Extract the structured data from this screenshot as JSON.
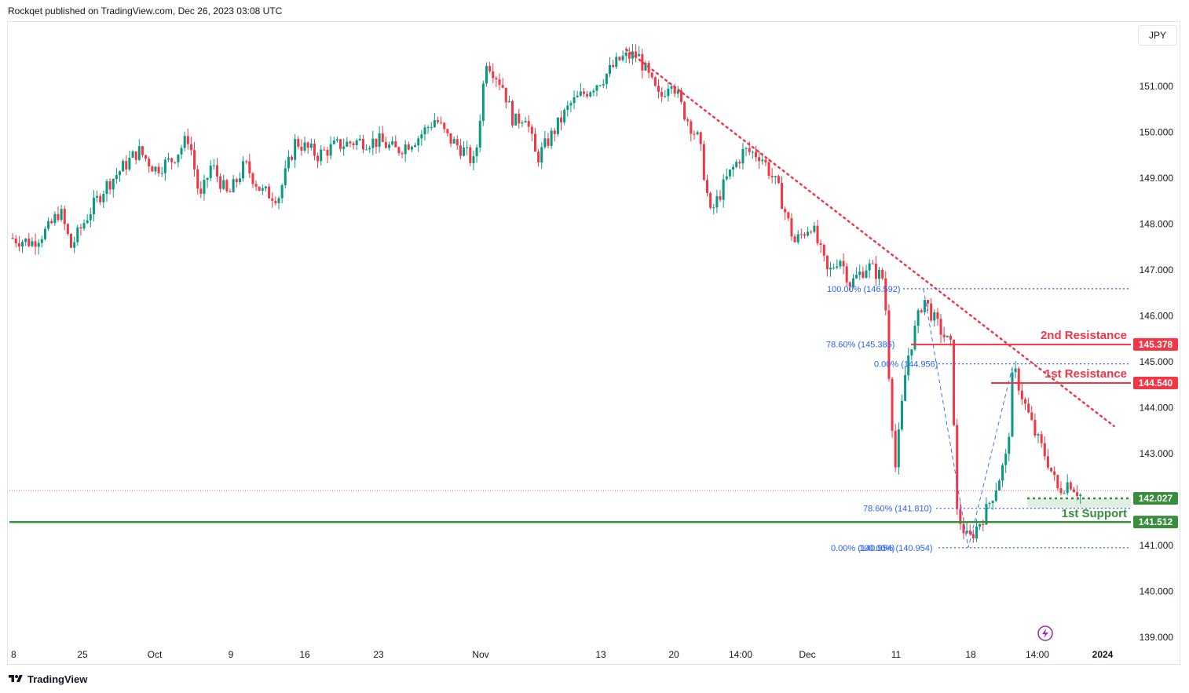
{
  "header": {
    "published_text": "Rockqet published on TradingView.com, Dec 26, 2023 03:08 UTC"
  },
  "toolbar": {
    "currency": "JPY"
  },
  "footer": {
    "brand": "TradingView"
  },
  "colors": {
    "up": "#089981",
    "down": "#f23645",
    "support": "#388e3c",
    "fib": "#2962ff",
    "trend": "#f23645"
  },
  "chart_data": {
    "type": "candlestick",
    "symbol_currency": "JPY",
    "ylim": [
      138.9,
      152.4
    ],
    "y_ticks": [
      "151.000",
      "150.000",
      "149.000",
      "148.000",
      "147.000",
      "146.000",
      "145.000",
      "144.000",
      "143.000",
      "142.000",
      "141.000",
      "140.000",
      "139.000"
    ],
    "x_ticks": [
      "8",
      "25",
      "Oct",
      "9",
      "16",
      "23",
      "Nov",
      "13",
      "20",
      "14:00",
      "Dec",
      "11",
      "18",
      "14:00",
      "2024"
    ],
    "price_path": [
      [
        0,
        147.7
      ],
      [
        0.02,
        147.6
      ],
      [
        0.035,
        147.9
      ],
      [
        0.045,
        148.3
      ],
      [
        0.055,
        147.5
      ],
      [
        0.07,
        148.2
      ],
      [
        0.085,
        148.8
      ],
      [
        0.1,
        149.2
      ],
      [
        0.115,
        149.6
      ],
      [
        0.13,
        149.2
      ],
      [
        0.145,
        149.4
      ],
      [
        0.16,
        149.9
      ],
      [
        0.17,
        148.5
      ],
      [
        0.18,
        149.3
      ],
      [
        0.195,
        148.6
      ],
      [
        0.21,
        149.3
      ],
      [
        0.225,
        148.7
      ],
      [
        0.24,
        148.6
      ],
      [
        0.255,
        149.8
      ],
      [
        0.275,
        149.5
      ],
      [
        0.29,
        149.7
      ],
      [
        0.31,
        149.8
      ],
      [
        0.33,
        149.8
      ],
      [
        0.345,
        149.6
      ],
      [
        0.365,
        149.9
      ],
      [
        0.38,
        150.3
      ],
      [
        0.39,
        149.9
      ],
      [
        0.405,
        149.6
      ],
      [
        0.415,
        149.3
      ],
      [
        0.425,
        151.6
      ],
      [
        0.44,
        151.0
      ],
      [
        0.45,
        150.2
      ],
      [
        0.46,
        150.4
      ],
      [
        0.47,
        149.4
      ],
      [
        0.485,
        150.0
      ],
      [
        0.5,
        150.6
      ],
      [
        0.515,
        150.9
      ],
      [
        0.53,
        151.2
      ],
      [
        0.545,
        151.6
      ],
      [
        0.56,
        151.7
      ],
      [
        0.57,
        151.2
      ],
      [
        0.58,
        150.7
      ],
      [
        0.59,
        151.2
      ],
      [
        0.6,
        150.5
      ],
      [
        0.615,
        149.8
      ],
      [
        0.625,
        148.2
      ],
      [
        0.64,
        149.0
      ],
      [
        0.655,
        149.6
      ],
      [
        0.67,
        149.5
      ],
      [
        0.685,
        148.8
      ],
      [
        0.7,
        147.6
      ],
      [
        0.715,
        148.0
      ],
      [
        0.73,
        146.9
      ],
      [
        0.74,
        147.3
      ],
      [
        0.75,
        146.7
      ],
      [
        0.765,
        147.1
      ],
      [
        0.78,
        146.8
      ],
      [
        0.785,
        144.4
      ],
      [
        0.79,
        142.7
      ],
      [
        0.8,
        145.0
      ],
      [
        0.815,
        146.4
      ],
      [
        0.825,
        145.9
      ],
      [
        0.84,
        145.3
      ],
      [
        0.845,
        141.7
      ],
      [
        0.855,
        141.1
      ],
      [
        0.87,
        141.7
      ],
      [
        0.88,
        142.3
      ],
      [
        0.89,
        143.0
      ],
      [
        0.895,
        144.9
      ],
      [
        0.905,
        144.1
      ],
      [
        0.915,
        143.4
      ],
      [
        0.925,
        142.9
      ],
      [
        0.935,
        142.2
      ],
      [
        0.945,
        142.4
      ],
      [
        0.955,
        142.1
      ]
    ],
    "annotations": [
      {
        "type": "trendline",
        "style": "dotted",
        "from": [
          0.55,
          151.8
        ],
        "to": [
          0.985,
          143.6
        ]
      },
      {
        "type": "level",
        "label": "2nd Resistance",
        "price": 145.378,
        "price_label": "145.378",
        "color": "#f23645"
      },
      {
        "type": "level",
        "label": "1st Resistance",
        "price": 144.54,
        "price_label": "144.540",
        "color": "#f23645"
      },
      {
        "type": "level",
        "label": "1st Support",
        "price": 141.512,
        "price_label": "141.512",
        "color": "#388e3c"
      },
      {
        "type": "level",
        "label": "",
        "price": 142.027,
        "price_label": "142.027",
        "color": "#388e3c",
        "style": "dotted"
      }
    ],
    "fib_labels": [
      {
        "text": "100.00% (146.592)",
        "price": 146.592
      },
      {
        "text": "78.60% (145.385)",
        "price": 145.385
      },
      {
        "text": "0.00% (144.956)",
        "price": 144.956
      },
      {
        "text": "78.60% (141.810)",
        "price": 141.81
      },
      {
        "text": "0.00% (140.954)",
        "price": 140.954
      },
      {
        "text": "100.00% (140.954)",
        "price": 140.954
      }
    ],
    "current_price": 142.027
  }
}
